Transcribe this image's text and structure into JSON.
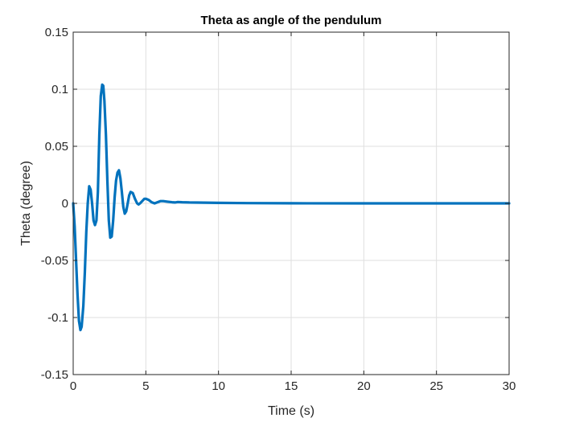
{
  "chart_data": {
    "type": "line",
    "title": "Theta as angle of the pendulum",
    "xlabel": "Time (s)",
    "ylabel": "Theta (degree)",
    "xlim": [
      0,
      30
    ],
    "ylim": [
      -0.15,
      0.15
    ],
    "xticks": [
      0,
      5,
      10,
      15,
      20,
      25,
      30
    ],
    "xtick_labels": [
      "0",
      "5",
      "10",
      "15",
      "20",
      "25",
      "30"
    ],
    "yticks": [
      -0.15,
      -0.1,
      -0.05,
      0,
      0.05,
      0.1,
      0.15
    ],
    "ytick_labels": [
      "-0.15",
      "-0.1",
      "-0.05",
      "0",
      "0.05",
      "0.1",
      "0.15"
    ],
    "grid": true,
    "series_color": "#0072bd",
    "x": [
      0,
      0.1,
      0.2,
      0.3,
      0.4,
      0.5,
      0.58,
      0.7,
      0.8,
      0.9,
      1.0,
      1.1,
      1.2,
      1.3,
      1.4,
      1.5,
      1.6,
      1.7,
      1.8,
      1.9,
      2.0,
      2.07,
      2.15,
      2.25,
      2.35,
      2.45,
      2.55,
      2.65,
      2.75,
      2.85,
      2.95,
      3.05,
      3.15,
      3.25,
      3.35,
      3.45,
      3.55,
      3.65,
      3.75,
      3.85,
      3.95,
      4.1,
      4.25,
      4.4,
      4.5,
      4.6,
      4.75,
      4.9,
      5.0,
      5.2,
      5.4,
      5.6,
      5.8,
      6.0,
      6.2,
      6.5,
      6.8,
      7.0,
      7.2,
      7.5,
      8.0,
      9.0,
      10.0,
      12.0,
      15.0,
      20.0,
      25.0,
      30.0
    ],
    "y": [
      0,
      -0.02,
      -0.05,
      -0.08,
      -0.103,
      -0.111,
      -0.108,
      -0.09,
      -0.06,
      -0.025,
      0.0,
      0.015,
      0.012,
      0.0,
      -0.015,
      -0.019,
      -0.015,
      0.01,
      0.06,
      0.094,
      0.104,
      0.103,
      0.09,
      0.06,
      0.02,
      -0.015,
      -0.03,
      -0.029,
      -0.015,
      0.005,
      0.02,
      0.027,
      0.029,
      0.022,
      0.01,
      -0.003,
      -0.009,
      -0.007,
      0.0,
      0.007,
      0.01,
      0.009,
      0.004,
      0.0,
      -0.001,
      0.0,
      0.002,
      0.004,
      0.004,
      0.003,
      0.001,
      0.0,
      0.001,
      0.002,
      0.002,
      0.0015,
      0.001,
      0.0008,
      0.0012,
      0.001,
      0.0008,
      0.0006,
      0.0004,
      0.0002,
      0.0001,
      0.0,
      0.0,
      0.0
    ]
  }
}
